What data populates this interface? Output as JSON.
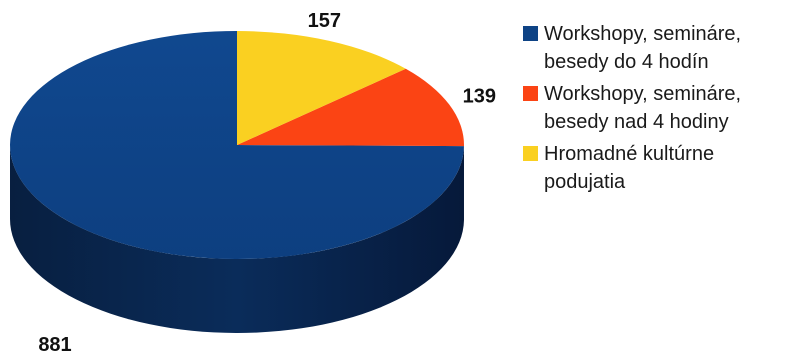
{
  "chart_data": {
    "type": "pie",
    "title": "",
    "slices": [
      {
        "label": "Workshopy, semináre, besedy do 4 hodín",
        "value": 881,
        "color": "#0e4385"
      },
      {
        "label": "Workshopy, semináre, besedy nad 4 hodiny",
        "value": 139,
        "color": "#fb4414"
      },
      {
        "label": "Hromadné kultúrne podujatia",
        "value": 157,
        "color": "#fad021"
      }
    ],
    "legend_position": "right",
    "style": "3d"
  }
}
